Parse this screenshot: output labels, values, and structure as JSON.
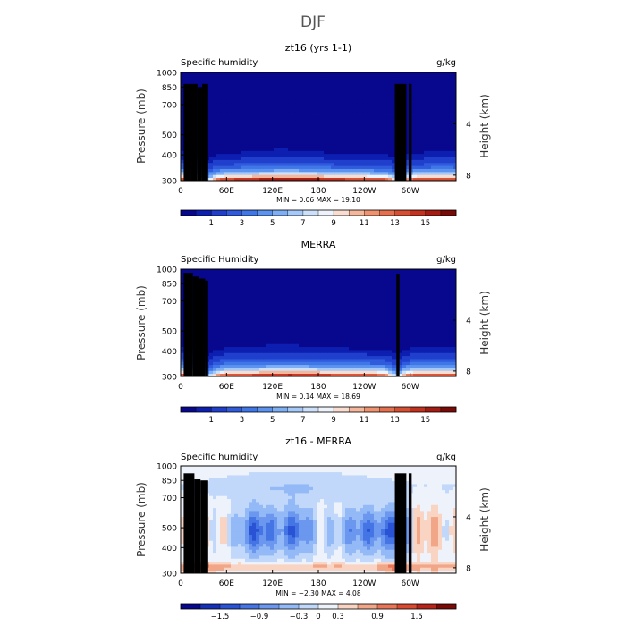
{
  "figure_title": "DJF",
  "colors": {
    "seq": [
      "#08088e",
      "#0c1fb0",
      "#1f3fcc",
      "#2f5bdc",
      "#4077e8",
      "#5b93ef",
      "#7eaff5",
      "#a5c9f8",
      "#cde0fa",
      "#eef2fa",
      "#f9ddd0",
      "#f4b79b",
      "#ee9270",
      "#e5704e",
      "#d74f32",
      "#c2321f",
      "#a41c12",
      "#7a0a06"
    ],
    "diff": [
      "#08088e",
      "#1430b8",
      "#2a52d4",
      "#4575e4",
      "#6b97ef",
      "#93b9f6",
      "#c2d8fa",
      "#eef2fa",
      "#f9d4c2",
      "#f1a688",
      "#e87558",
      "#d94a30",
      "#b8241a",
      "#7a0a06"
    ],
    "terrain": "#000000"
  },
  "chart_data": [
    {
      "type": "heatmap",
      "title": "zt16 (yrs 1-1)",
      "left_label": "Specific humidity",
      "right_label": "g/kg",
      "ylabel": "Pressure (mb)",
      "y2label": "Height (km)",
      "yticks": [
        "300",
        "400",
        "500",
        "700",
        "850",
        "1000"
      ],
      "y2ticks": [
        "8",
        "4"
      ],
      "xticks": [
        "0",
        "60E",
        "120E",
        "180",
        "120W",
        "60W"
      ],
      "stats": "MIN =    0.06   MAX =   19.10",
      "colorbar_labels": [
        "1",
        "3",
        "5",
        "7",
        "9",
        "11",
        "13",
        "15"
      ],
      "colorbar_levels": [
        0.5,
        1,
        2,
        3,
        4,
        5,
        6,
        7,
        8,
        9,
        10,
        11,
        12,
        13,
        14,
        15,
        16
      ],
      "xlim": [
        0,
        360
      ],
      "ylim": [
        1000,
        300
      ],
      "min": 0.06,
      "max": 19.1
    },
    {
      "type": "heatmap",
      "title": "MERRA",
      "left_label": "Specific Humidity",
      "right_label": "g/kg",
      "ylabel": "Pressure (mb)",
      "y2label": "Height (km)",
      "yticks": [
        "300",
        "400",
        "500",
        "700",
        "850",
        "1000"
      ],
      "y2ticks": [
        "8",
        "4"
      ],
      "xticks": [
        "0",
        "60E",
        "120E",
        "180",
        "120W",
        "60W"
      ],
      "stats": "MIN =    0.14   MAX =   18.69",
      "colorbar_labels": [
        "1",
        "3",
        "5",
        "7",
        "9",
        "11",
        "13",
        "15"
      ],
      "colorbar_levels": [
        0.5,
        1,
        2,
        3,
        4,
        5,
        6,
        7,
        8,
        9,
        10,
        11,
        12,
        13,
        14,
        15,
        16
      ],
      "xlim": [
        0,
        360
      ],
      "ylim": [
        1000,
        300
      ],
      "min": 0.14,
      "max": 18.69
    },
    {
      "type": "heatmap",
      "title": "zt16 - MERRA",
      "left_label": "Specific humidity",
      "right_label": "g/kg",
      "ylabel": "Pressure (mb)",
      "y2label": "Height (km)",
      "yticks": [
        "300",
        "400",
        "500",
        "700",
        "850",
        "1000"
      ],
      "y2ticks": [
        "8",
        "4"
      ],
      "xticks": [
        "0",
        "60E",
        "120E",
        "180",
        "120W",
        "60W"
      ],
      "stats": "MIN =   −2.30   MAX =    4.08",
      "colorbar_labels": [
        "−1.5",
        "−0.9",
        "−0.3",
        "0",
        "0.3",
        "0.9",
        "1.5"
      ],
      "colorbar_levels": [
        -1.8,
        -1.5,
        -1.2,
        -0.9,
        -0.6,
        -0.3,
        -0.1,
        0.1,
        0.3,
        0.6,
        0.9,
        1.2,
        1.5,
        1.8
      ],
      "xlim": [
        0,
        360
      ],
      "ylim": [
        1000,
        300
      ],
      "min": -2.3,
      "max": 4.08
    }
  ]
}
